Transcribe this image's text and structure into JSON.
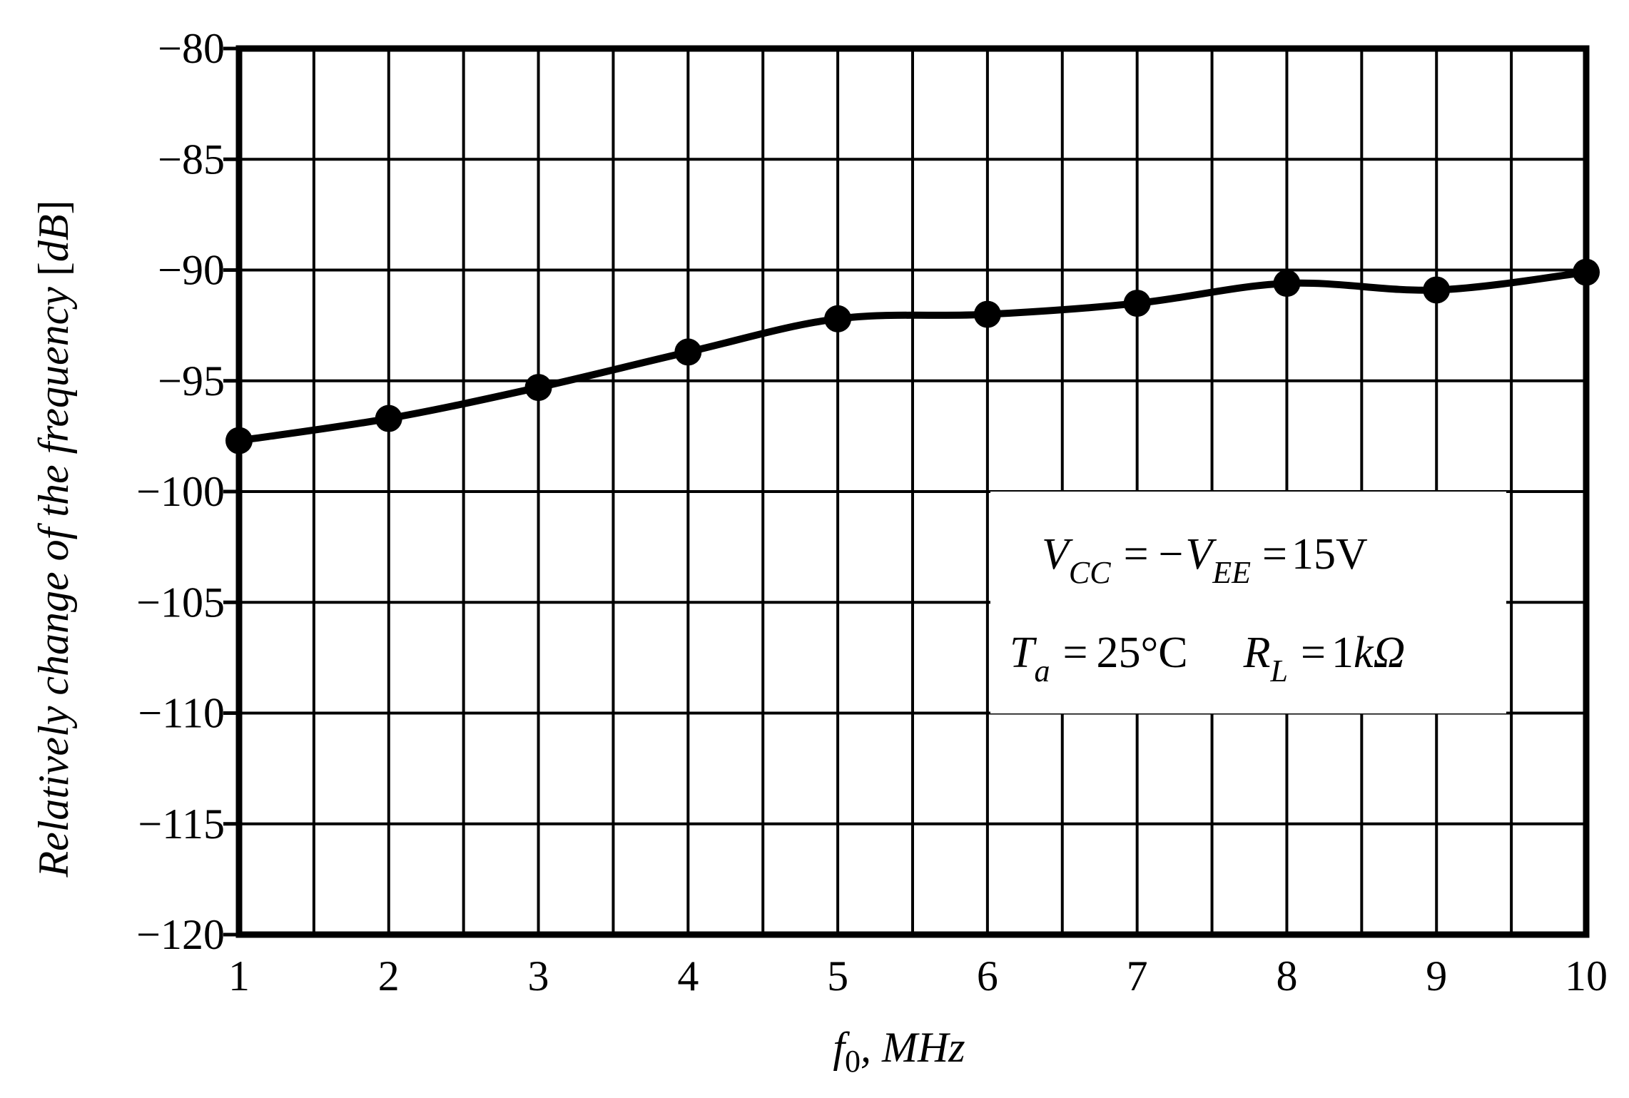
{
  "chart_data": {
    "type": "line",
    "title": "",
    "xlabel": "f0, MHz",
    "xlabel_parts": {
      "symbol": "f",
      "subscript": "0",
      "rest": ", MHz"
    },
    "ylabel": "Relatively change of the frequency [dB]",
    "ylabel_parts": {
      "main": "Relatively change of the frequency ",
      "unit_open": "[",
      "unit": "dB",
      "unit_close": "]"
    },
    "xlim": [
      1,
      10
    ],
    "ylim": [
      -120,
      -80
    ],
    "x_ticks": [
      1,
      2,
      3,
      4,
      5,
      6,
      7,
      8,
      9,
      10
    ],
    "x_tick_labels": [
      "1",
      "2",
      "3",
      "4",
      "5",
      "6",
      "7",
      "8",
      "9",
      "10"
    ],
    "y_ticks": [
      -80,
      -85,
      -90,
      -95,
      -100,
      -105,
      -110,
      -115,
      -120
    ],
    "y_tick_labels": [
      "−80",
      "−85",
      "−90",
      "−95",
      "−100",
      "−105",
      "−110",
      "−115",
      "−120"
    ],
    "minor_x_gridlines": [
      1.5,
      2.5,
      3.5,
      4.5,
      5.5,
      6.5,
      7.5,
      8.5,
      9.5
    ],
    "grid": true,
    "series": [
      {
        "x": [
          1,
          2,
          3,
          4,
          5,
          6,
          7,
          8,
          9,
          10
        ],
        "y": [
          -97.7,
          -96.7,
          -95.3,
          -93.7,
          -92.2,
          -92.0,
          -91.5,
          -90.6,
          -90.9,
          -90.1
        ],
        "color": "#000000",
        "markers": "filled-circle"
      }
    ],
    "annotations": {
      "line1": {
        "v": "V",
        "v_sub": "CC",
        "eq1": "=",
        "minus_v": "−V",
        "minus_v_sub": "EE",
        "eq2": "=",
        "value": "15V"
      },
      "line2": {
        "t": "T",
        "t_sub": "a",
        "eq1": "=",
        "t_value": "25°C",
        "r": "R",
        "r_sub": "L",
        "eq2": "=",
        "r_value_num": "1",
        "r_value_unit": "kΩ"
      },
      "legend_placement": "lower-right"
    }
  }
}
